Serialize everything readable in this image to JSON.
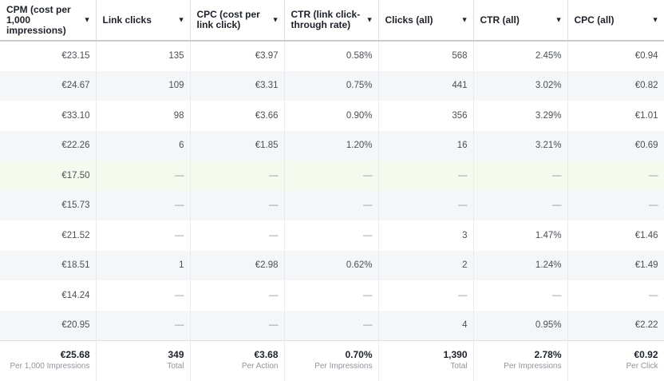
{
  "columns": [
    {
      "label": "CPM (cost per 1,000 impressions)"
    },
    {
      "label": "Link clicks"
    },
    {
      "label": "CPC (cost per link click)"
    },
    {
      "label": "CTR (link click-through rate)"
    },
    {
      "label": "Clicks (all)"
    },
    {
      "label": "CTR (all)"
    },
    {
      "label": "CPC (all)"
    }
  ],
  "caret_icon": "caret-down-icon",
  "rows": [
    [
      "€23.15",
      "135",
      "€3.97",
      "0.58%",
      "568",
      "2.45%",
      "€0.94"
    ],
    [
      "€24.67",
      "109",
      "€3.31",
      "0.75%",
      "441",
      "3.02%",
      "€0.82"
    ],
    [
      "€33.10",
      "98",
      "€3.66",
      "0.90%",
      "356",
      "3.29%",
      "€1.01"
    ],
    [
      "€22.26",
      "6",
      "€1.85",
      "1.20%",
      "16",
      "3.21%",
      "€0.69"
    ],
    [
      "€17.50",
      "—",
      "—",
      "—",
      "—",
      "—",
      "—"
    ],
    [
      "€15.73",
      "—",
      "—",
      "—",
      "—",
      "—",
      "—"
    ],
    [
      "€21.52",
      "—",
      "—",
      "—",
      "3",
      "1.47%",
      "€1.46"
    ],
    [
      "€18.51",
      "1",
      "€2.98",
      "0.62%",
      "2",
      "1.24%",
      "€1.49"
    ],
    [
      "€14.24",
      "—",
      "—",
      "—",
      "—",
      "—",
      "—"
    ],
    [
      "€20.95",
      "—",
      "—",
      "—",
      "4",
      "0.95%",
      "€2.22"
    ]
  ],
  "totals": [
    {
      "value": "€25.68",
      "label": "Per 1,000 Impressions"
    },
    {
      "value": "349",
      "label": "Total"
    },
    {
      "value": "€3.68",
      "label": "Per Action"
    },
    {
      "value": "0.70%",
      "label": "Per Impressions"
    },
    {
      "value": "1,390",
      "label": "Total"
    },
    {
      "value": "2.78%",
      "label": "Per Impressions"
    },
    {
      "value": "€0.92",
      "label": "Per Click"
    }
  ]
}
